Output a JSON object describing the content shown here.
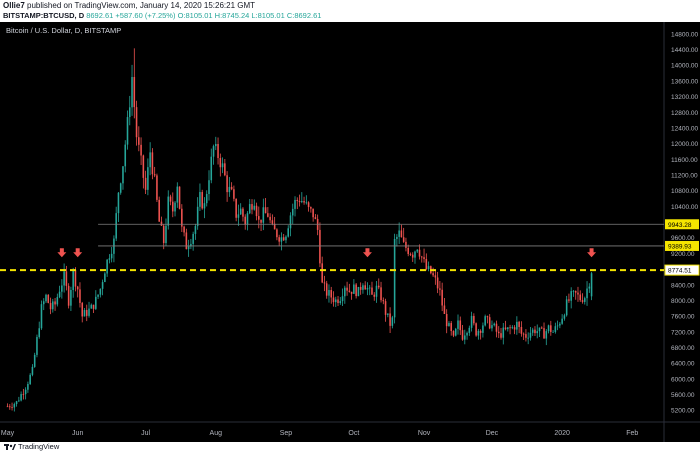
{
  "header": {
    "author": "Ollie7",
    "published": "published on TradingView.com, January 14, 2020 15:26:21 GMT",
    "symbol": "BITSTAMP:BTCUSD, D",
    "last": "8692.61",
    "change": "+587.60 (+7.25%)",
    "ohlc": "O:8105.01  H:8745.24  L:8105.01  C:8692.61"
  },
  "brand": {
    "name": "TradingView",
    "icon": "tradingview-logo-icon"
  },
  "colors": {
    "up": "#26a69a",
    "down": "#ef5350",
    "support": "#f5e500",
    "background": "#000000",
    "arrow": "#ef5350"
  },
  "chart_data": {
    "type": "candlestick",
    "title": "Bitcoin / U.S. Dollar, D, BITSTAMP",
    "x_ticks": [
      {
        "label": "May",
        "day": 0
      },
      {
        "label": "Jun",
        "day": 31
      },
      {
        "label": "Jul",
        "day": 61
      },
      {
        "label": "Aug",
        "day": 92
      },
      {
        "label": "Sep",
        "day": 123
      },
      {
        "label": "Oct",
        "day": 153
      },
      {
        "label": "Nov",
        "day": 184
      },
      {
        "label": "Dec",
        "day": 214
      },
      {
        "label": "2020",
        "day": 245
      },
      {
        "label": "Feb",
        "day": 276
      }
    ],
    "y_ticks": [
      5200,
      5600,
      6000,
      6400,
      6800,
      7200,
      7600,
      8000,
      8400,
      8800,
      9200,
      9600,
      10000,
      10400,
      10800,
      11200,
      11600,
      12000,
      12400,
      12800,
      13200,
      13600,
      14000,
      14400,
      14800
    ],
    "y_tick_labels": [
      "5200.00",
      "5600.00",
      "6000.00",
      "6400.00",
      "6800.00",
      "7200.00",
      "7600.00",
      "8000.00",
      "8400.00",
      "8800.00",
      "9200.00",
      "9600.00",
      "10000.00",
      "10400.00",
      "10800.00",
      "11200.00",
      "11600.00",
      "12000.00",
      "12400.00",
      "12800.00",
      "13200.00",
      "13600.00",
      "14000.00",
      "14400.00",
      "14800.00"
    ],
    "ylim": [
      4900,
      15000
    ],
    "xlim": [
      -2,
      290
    ],
    "grid": false,
    "horizontal_lines": [
      {
        "value": 9943.28,
        "label": "9943.28",
        "style": "solid",
        "color": "#808080"
      },
      {
        "value": 9389.93,
        "label": "9389.93",
        "style": "solid",
        "color": "#808080"
      },
      {
        "value": 8774.51,
        "label": "8774.51",
        "style": "dashed",
        "color": "#f5e500"
      }
    ],
    "annotations": [
      {
        "type": "arrow-down",
        "day": 24,
        "value": 9000
      },
      {
        "type": "arrow-down",
        "day": 31,
        "value": 9000
      },
      {
        "type": "arrow-down",
        "day": 159,
        "value": 9000
      },
      {
        "type": "arrow-down",
        "day": 258,
        "value": 9000
      }
    ],
    "close_path": [
      [
        0,
        5300
      ],
      [
        4,
        5400
      ],
      [
        8,
        5800
      ],
      [
        11,
        6200
      ],
      [
        13,
        7000
      ],
      [
        15,
        7800
      ],
      [
        17,
        8100
      ],
      [
        19,
        7800
      ],
      [
        21,
        7900
      ],
      [
        23,
        8300
      ],
      [
        25,
        8600
      ],
      [
        27,
        8000
      ],
      [
        29,
        8700
      ],
      [
        31,
        8300
      ],
      [
        33,
        7600
      ],
      [
        35,
        7700
      ],
      [
        37,
        7800
      ],
      [
        39,
        8000
      ],
      [
        41,
        8300
      ],
      [
        43,
        8800
      ],
      [
        45,
        9200
      ],
      [
        47,
        9500
      ],
      [
        49,
        10800
      ],
      [
        51,
        11500
      ],
      [
        53,
        12500
      ],
      [
        55,
        13700
      ],
      [
        57,
        12200
      ],
      [
        59,
        11500
      ],
      [
        61,
        10800
      ],
      [
        63,
        11800
      ],
      [
        65,
        11000
      ],
      [
        67,
        10000
      ],
      [
        69,
        9500
      ],
      [
        71,
        10500
      ],
      [
        73,
        10300
      ],
      [
        75,
        11000
      ],
      [
        77,
        9800
      ],
      [
        79,
        9400
      ],
      [
        81,
        9600
      ],
      [
        83,
        9900
      ],
      [
        85,
        10600
      ],
      [
        87,
        10400
      ],
      [
        89,
        11200
      ],
      [
        91,
        11900
      ],
      [
        93,
        11700
      ],
      [
        95,
        11400
      ],
      [
        97,
        10900
      ],
      [
        99,
        10700
      ],
      [
        101,
        10200
      ],
      [
        103,
        10300
      ],
      [
        105,
        10000
      ],
      [
        107,
        10400
      ],
      [
        109,
        10600
      ],
      [
        111,
        10000
      ],
      [
        113,
        10200
      ],
      [
        115,
        10200
      ],
      [
        117,
        9800
      ],
      [
        119,
        9700
      ],
      [
        121,
        9600
      ],
      [
        123,
        9750
      ],
      [
        125,
        10200
      ],
      [
        127,
        10500
      ],
      [
        129,
        10600
      ],
      [
        131,
        10500
      ],
      [
        133,
        10300
      ],
      [
        135,
        10200
      ],
      [
        137,
        9800
      ],
      [
        139,
        8400
      ],
      [
        141,
        8200
      ],
      [
        143,
        8100
      ],
      [
        145,
        8000
      ],
      [
        147,
        8100
      ],
      [
        149,
        8400
      ],
      [
        151,
        8250
      ],
      [
        153,
        8300
      ],
      [
        155,
        8200
      ],
      [
        157,
        8500
      ],
      [
        159,
        8300
      ],
      [
        161,
        8100
      ],
      [
        163,
        8300
      ],
      [
        165,
        8100
      ],
      [
        167,
        7700
      ],
      [
        169,
        7400
      ],
      [
        170,
        7500
      ],
      [
        171,
        9500
      ],
      [
        173,
        9700
      ],
      [
        175,
        9400
      ],
      [
        177,
        9300
      ],
      [
        179,
        9200
      ],
      [
        181,
        9400
      ],
      [
        183,
        9100
      ],
      [
        185,
        8800
      ],
      [
        187,
        8700
      ],
      [
        189,
        8500
      ],
      [
        191,
        8200
      ],
      [
        193,
        7600
      ],
      [
        195,
        7300
      ],
      [
        197,
        7000
      ],
      [
        199,
        7400
      ],
      [
        201,
        7100
      ],
      [
        203,
        7300
      ],
      [
        205,
        7500
      ],
      [
        207,
        7200
      ],
      [
        209,
        7300
      ],
      [
        211,
        7500
      ],
      [
        213,
        7400
      ],
      [
        215,
        7300
      ],
      [
        217,
        7100
      ],
      [
        219,
        7200
      ],
      [
        221,
        7250
      ],
      [
        223,
        7300
      ],
      [
        225,
        7400
      ],
      [
        227,
        7150
      ],
      [
        229,
        7100
      ],
      [
        231,
        7200
      ],
      [
        233,
        7250
      ],
      [
        235,
        7200
      ],
      [
        237,
        7150
      ],
      [
        239,
        7300
      ],
      [
        241,
        7200
      ],
      [
        243,
        7350
      ],
      [
        245,
        7600
      ],
      [
        247,
        7900
      ],
      [
        249,
        8100
      ],
      [
        251,
        8150
      ],
      [
        253,
        8050
      ],
      [
        255,
        8100
      ],
      [
        257,
        8500
      ],
      [
        258,
        8693
      ]
    ]
  }
}
